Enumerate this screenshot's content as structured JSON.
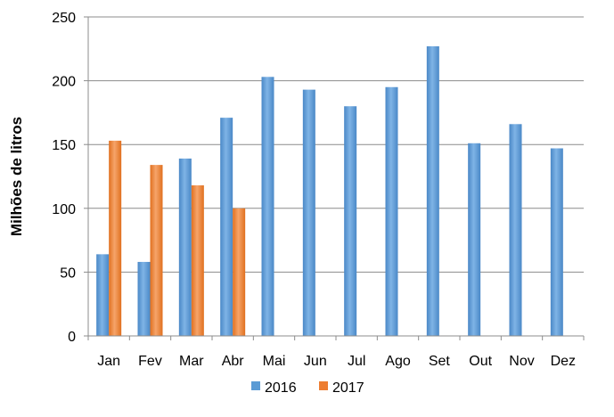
{
  "chart_data": {
    "type": "bar",
    "title": "",
    "xlabel": "",
    "ylabel": "Milhões de litros",
    "ylim": [
      0,
      250
    ],
    "yticks": [
      0,
      50,
      100,
      150,
      200,
      250
    ],
    "grid": true,
    "legend_position": "bottom",
    "categories": [
      "Jan",
      "Fev",
      "Mar",
      "Abr",
      "Mai",
      "Jun",
      "Jul",
      "Ago",
      "Set",
      "Out",
      "Nov",
      "Dez"
    ],
    "series": [
      {
        "name": "2016",
        "color": "#5b9bd5",
        "values": [
          64,
          58,
          139,
          171,
          203,
          193,
          180,
          195,
          227,
          151,
          166,
          147
        ]
      },
      {
        "name": "2017",
        "color": "#ed7d31",
        "values": [
          153,
          134,
          118,
          100,
          null,
          null,
          null,
          null,
          null,
          null,
          null,
          null
        ]
      }
    ]
  }
}
